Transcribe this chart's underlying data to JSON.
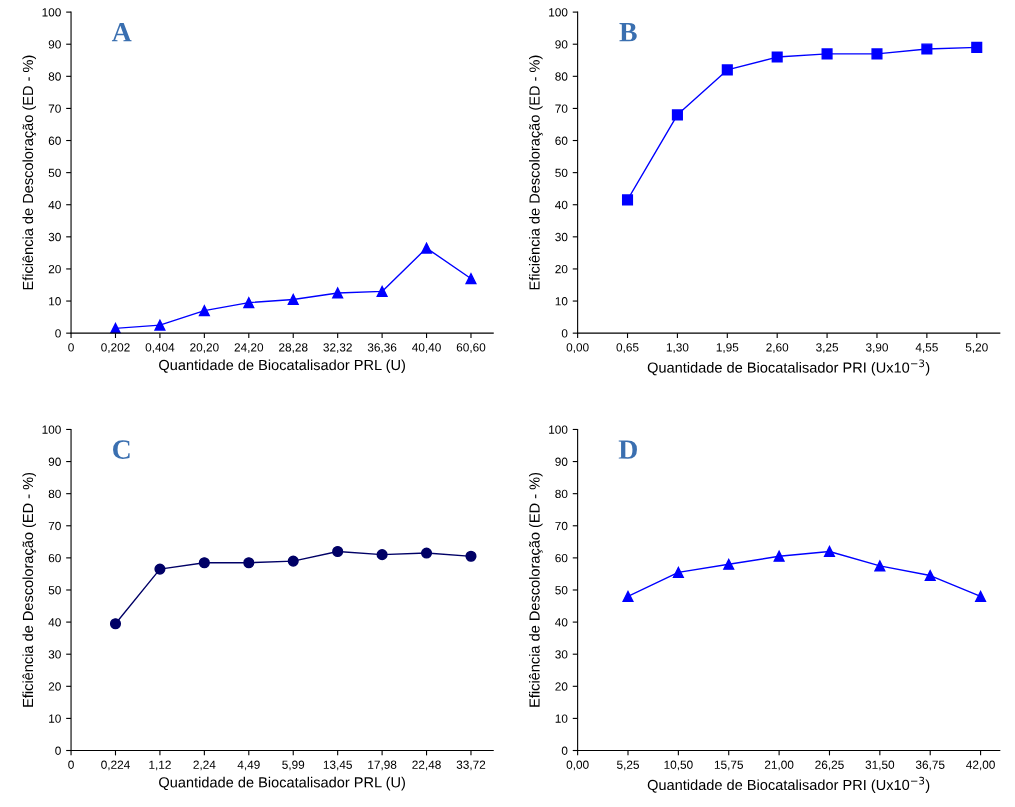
{
  "chart_data": [
    {
      "type": "line",
      "title": "A",
      "xlabel": "Quantidade de Biocatalisador PRL (U)",
      "ylabel": "Eficiência de Descoloração (ED - %)",
      "categories": [
        "0",
        "0,202",
        "0,404",
        "20,20",
        "24,20",
        "28,28",
        "32,32",
        "36,36",
        "40,40",
        "60,60"
      ],
      "series": [
        {
          "color": "#0000ff",
          "values": [
            null,
            1.5,
            2.5,
            7,
            9.5,
            10.5,
            12.5,
            13,
            26.5,
            17
          ]
        }
      ],
      "marker": "triangle",
      "ylim": [
        0,
        100
      ],
      "yticks": [
        0,
        10,
        20,
        30,
        40,
        50,
        60,
        70,
        80,
        90,
        100
      ],
      "grid": false,
      "legend": false
    },
    {
      "type": "line",
      "title": "B",
      "xlabel": "Quantidade de Biocatalisador PRI (Ux10$^{−3}$)",
      "ylabel": "Eficiência de Descoloração (ED - %)",
      "x": [
        0.65,
        1.3,
        1.95,
        2.6,
        3.25,
        3.9,
        4.55,
        5.2
      ],
      "series": [
        {
          "color": "#0000ff",
          "values": [
            41.5,
            68,
            82,
            86,
            87,
            87,
            88.5,
            89
          ]
        }
      ],
      "marker": "square",
      "xlim": [
        0,
        5.5
      ],
      "xticks": [
        {
          "value": 0,
          "label": "0,00"
        },
        {
          "value": 0.65,
          "label": "0,65"
        },
        {
          "value": 1.3,
          "label": "1,30"
        },
        {
          "value": 1.95,
          "label": "1,95"
        },
        {
          "value": 2.6,
          "label": "2,60"
        },
        {
          "value": 3.25,
          "label": "3,25"
        },
        {
          "value": 3.9,
          "label": "3,90"
        },
        {
          "value": 4.55,
          "label": "4,55"
        },
        {
          "value": 5.2,
          "label": "5,20"
        }
      ],
      "ylim": [
        0,
        100
      ],
      "yticks": [
        0,
        10,
        20,
        30,
        40,
        50,
        60,
        70,
        80,
        90,
        100
      ],
      "grid": false,
      "legend": false
    },
    {
      "type": "line",
      "title": "C",
      "xlabel": "Quantidade de Biocatalisador PRL (U)",
      "ylabel": "Eficiência de Descoloração (ED - %)",
      "categories": [
        "0",
        "0,224",
        "1,12",
        "2,24",
        "4,49",
        "5,99",
        "13,45",
        "17,98",
        "22,48",
        "33,72"
      ],
      "series": [
        {
          "color": "#000066",
          "values": [
            null,
            39.5,
            56.5,
            58.5,
            58.5,
            59,
            62,
            61,
            61.5,
            60.5
          ]
        }
      ],
      "marker": "circle",
      "ylim": [
        0,
        100
      ],
      "yticks": [
        0,
        10,
        20,
        30,
        40,
        50,
        60,
        70,
        80,
        90,
        100
      ],
      "grid": false,
      "legend": false
    },
    {
      "type": "line",
      "title": "D",
      "xlabel": "Quantidade de Biocatalisador PRI (Ux10$^{−3}$)",
      "ylabel": "Eficiência de Descoloração (ED - %)",
      "x": [
        5.25,
        10.5,
        15.75,
        21,
        26.25,
        31.5,
        36.75,
        42
      ],
      "series": [
        {
          "color": "#0000ff",
          "values": [
            48,
            55.5,
            58,
            60.5,
            62,
            57.5,
            54.5,
            48
          ]
        }
      ],
      "marker": "triangle",
      "xlim": [
        0,
        44
      ],
      "xticks": [
        {
          "value": 0,
          "label": "0,00"
        },
        {
          "value": 5.25,
          "label": "5,25"
        },
        {
          "value": 10.5,
          "label": "10,50"
        },
        {
          "value": 15.75,
          "label": "15,75"
        },
        {
          "value": 21,
          "label": "21,00"
        },
        {
          "value": 26.25,
          "label": "26,25"
        },
        {
          "value": 31.5,
          "label": "31,50"
        },
        {
          "value": 36.75,
          "label": "36,75"
        },
        {
          "value": 42,
          "label": "42,00"
        }
      ],
      "ylim": [
        0,
        100
      ],
      "yticks": [
        0,
        10,
        20,
        30,
        40,
        50,
        60,
        70,
        80,
        90,
        100
      ],
      "grid": false,
      "legend": false
    }
  ]
}
